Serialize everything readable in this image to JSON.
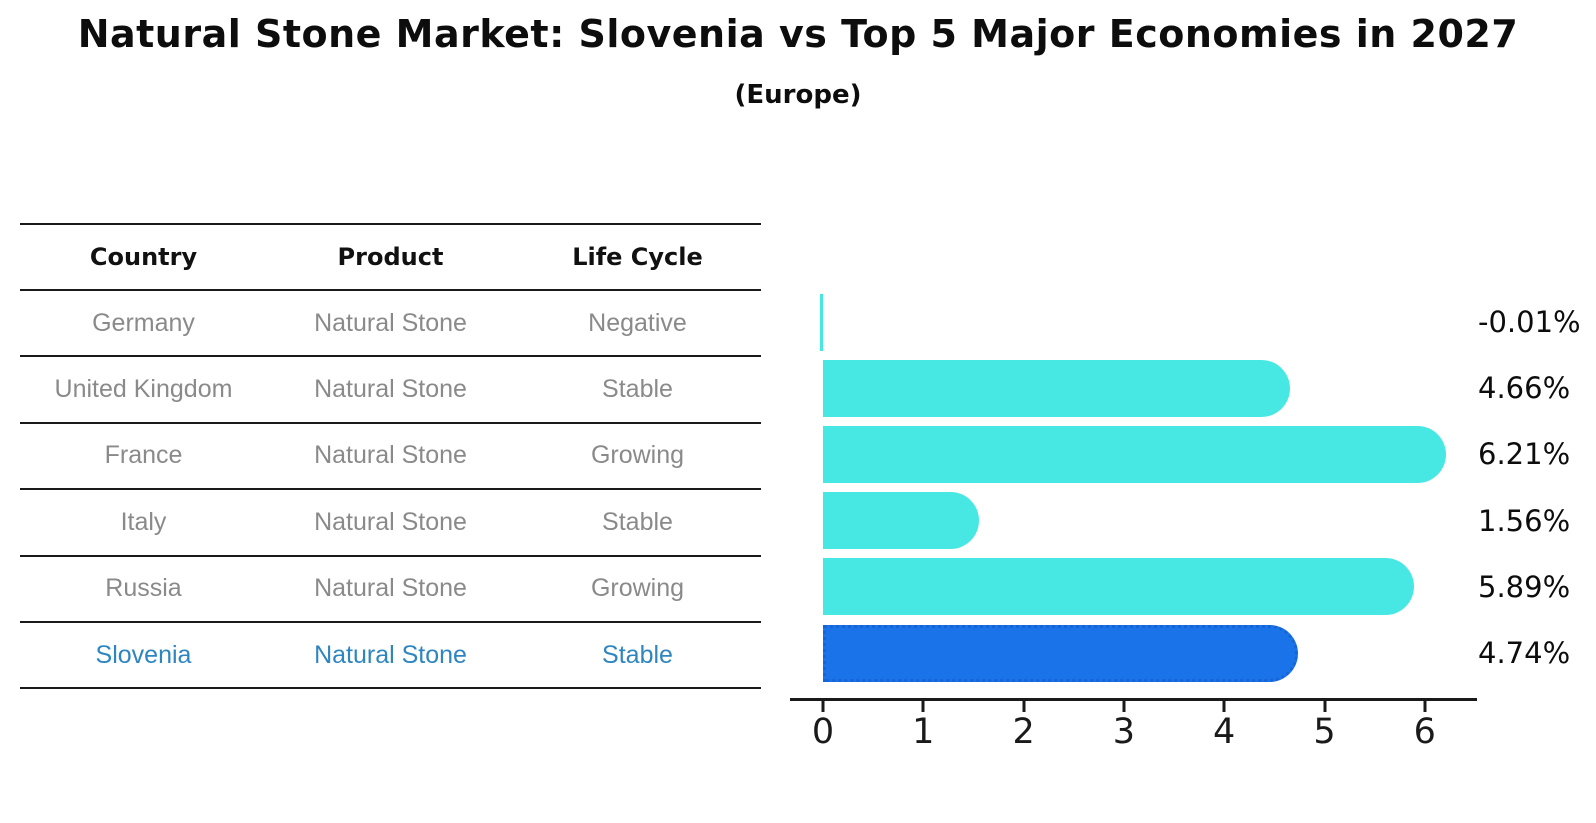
{
  "title": "Natural Stone Market: Slovenia vs Top 5 Major Economies in 2027",
  "subtitle": "(Europe)",
  "colors": {
    "bar_default": "#47E7E3",
    "bar_highlight": "#1A73E8",
    "highlight_border": "#1565D8",
    "row_text": "#8a8a8a",
    "highlight_text": "#2E86C1"
  },
  "table": {
    "headers": [
      "Country",
      "Product",
      "Life Cycle"
    ],
    "rows": [
      {
        "country": "Germany",
        "product": "Natural Stone",
        "life_cycle": "Negative",
        "highlight": false
      },
      {
        "country": "United Kingdom",
        "product": "Natural Stone",
        "life_cycle": "Stable",
        "highlight": false
      },
      {
        "country": "France",
        "product": "Natural Stone",
        "life_cycle": "Growing",
        "highlight": false
      },
      {
        "country": "Italy",
        "product": "Natural Stone",
        "life_cycle": "Stable",
        "highlight": false
      },
      {
        "country": "Russia",
        "product": "Natural Stone",
        "life_cycle": "Growing",
        "highlight": false
      },
      {
        "country": "Slovenia",
        "product": "Natural Stone",
        "life_cycle": "Stable",
        "highlight": true
      }
    ]
  },
  "chart_data": {
    "type": "bar",
    "orientation": "horizontal",
    "title": "Natural Stone Market: Slovenia vs Top 5 Major Economies in 2027 (Europe)",
    "categories": [
      "Germany",
      "United Kingdom",
      "France",
      "Italy",
      "Russia",
      "Slovenia"
    ],
    "values": [
      -0.01,
      4.66,
      6.21,
      1.56,
      5.89,
      4.74
    ],
    "labels": [
      "-0.01%",
      "4.66%",
      "6.21%",
      "1.56%",
      "5.89%",
      "4.74%"
    ],
    "highlight_index": 5,
    "xticks": [
      0,
      1,
      2,
      3,
      4,
      5,
      6
    ],
    "xlim": [
      -0.33,
      6.52
    ],
    "grid": false,
    "legend": false
  }
}
